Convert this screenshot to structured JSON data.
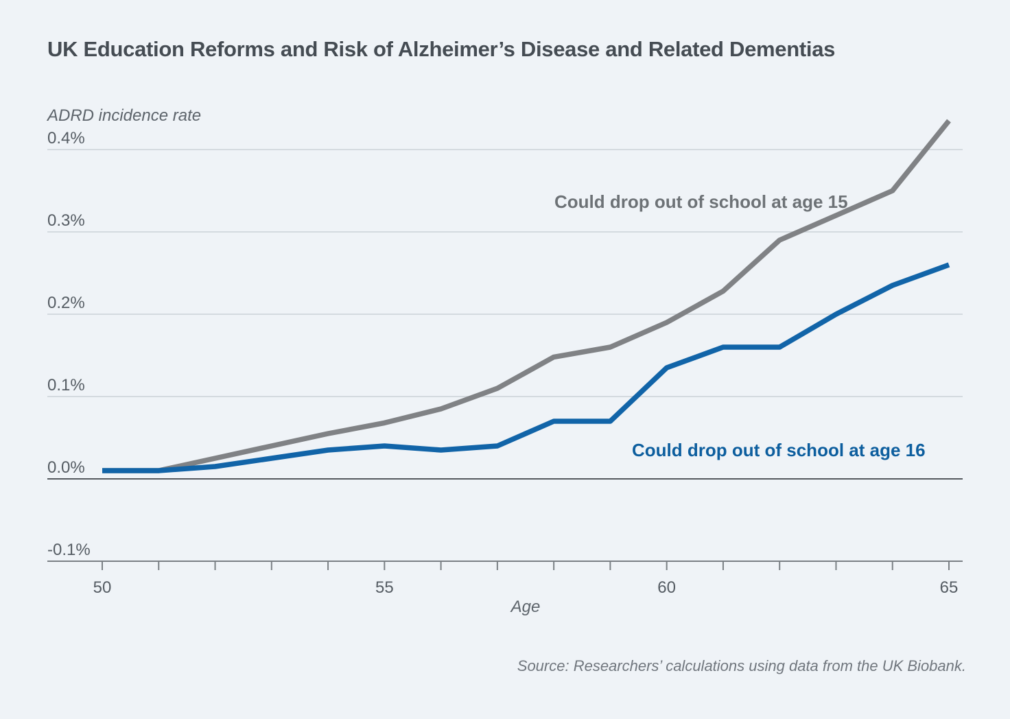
{
  "colors": {
    "background": "#eff3f7",
    "title": "#454c53",
    "gridline": "#ccd1d7",
    "zero_line": "#54595e",
    "axis_line": "#7a8085",
    "series_age15": "#808285",
    "series_age16": "#1164a8",
    "label_age15": "#6d7276",
    "label_age16": "#0d5e9e"
  },
  "chart_data": {
    "type": "line",
    "title": "UK Education Reforms and Risk of Alzheimer’s Disease and Related Dementias",
    "ylabel_note": "ADRD incidence rate",
    "xlabel": "Age",
    "source": "Source: Researchers’ calculations using data from the UK Biobank.",
    "grid": true,
    "legend_position": "inline-annotations",
    "xlim": [
      50,
      65
    ],
    "ylim": [
      -0.1,
      0.45
    ],
    "x": [
      50,
      51,
      52,
      53,
      54,
      55,
      56,
      57,
      58,
      59,
      60,
      61,
      62,
      63,
      64,
      65
    ],
    "xticks_labeled": [
      50,
      55,
      60,
      65
    ],
    "yticks": [
      {
        "label": "0.4%",
        "value": 0.4
      },
      {
        "label": "0.3%",
        "value": 0.3
      },
      {
        "label": "0.2%",
        "value": 0.2
      },
      {
        "label": "0.1%",
        "value": 0.1
      },
      {
        "label": "0.0%",
        "value": 0.0
      },
      {
        "label": "-0.1%",
        "value": -0.1
      }
    ],
    "series": [
      {
        "name": "Could drop out of school at age 15",
        "color": "#808285",
        "values": [
          0.01,
          0.01,
          0.025,
          0.04,
          0.055,
          0.068,
          0.085,
          0.11,
          0.148,
          0.16,
          0.19,
          0.228,
          0.29,
          0.32,
          0.35,
          0.435
        ]
      },
      {
        "name": "Could drop out of school at age 16",
        "color": "#1164a8",
        "values": [
          0.01,
          0.01,
          0.015,
          0.025,
          0.035,
          0.04,
          0.035,
          0.04,
          0.07,
          0.07,
          0.135,
          0.16,
          0.16,
          0.2,
          0.235,
          0.26
        ]
      }
    ]
  }
}
